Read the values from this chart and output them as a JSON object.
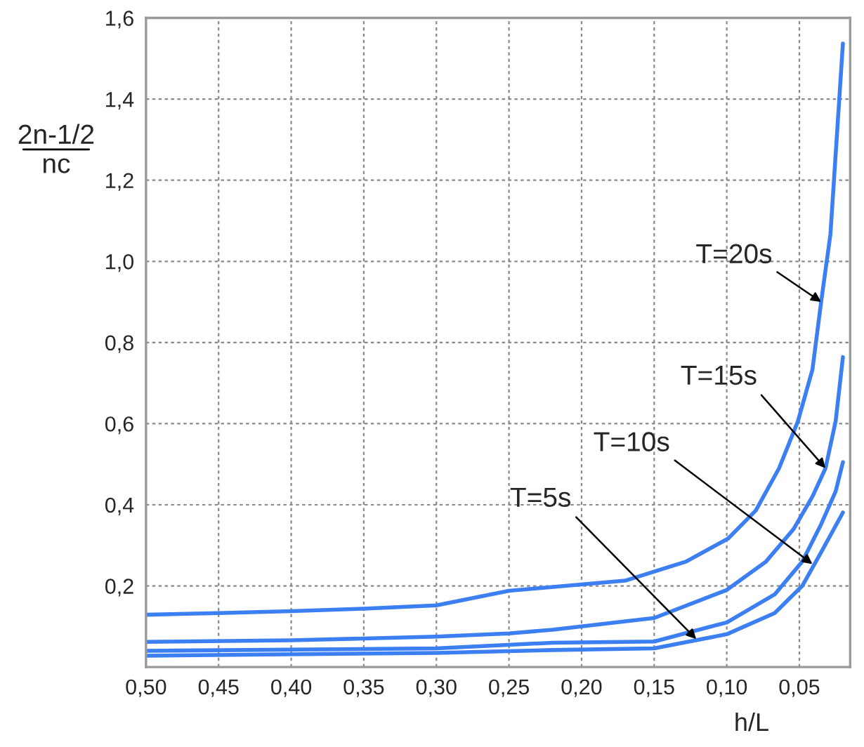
{
  "chart_data": {
    "type": "line",
    "xlabel": "h/L",
    "ylabel": "2n-1/2\nnc",
    "series": [
      {
        "color": "#3b7ff2",
        "x": [
          0.5,
          0.45,
          0.4,
          0.35,
          0.3,
          0.25,
          0.17,
          0.128,
          0.099,
          0.08,
          0.064,
          0.051,
          0.041,
          0.035,
          0.0286,
          0.02
        ],
        "values": [
          0.129,
          0.133,
          0.138,
          0.144,
          0.152,
          0.188,
          0.213,
          0.26,
          0.317,
          0.386,
          0.49,
          0.606,
          0.733,
          0.9,
          1.067,
          1.537
        ]
      },
      {
        "color": "#3b7ff2",
        "x": [
          0.5,
          0.4,
          0.3,
          0.25,
          0.22,
          0.15,
          0.1,
          0.073,
          0.054,
          0.041,
          0.032,
          0.025,
          0.02
        ],
        "values": [
          0.062,
          0.066,
          0.075,
          0.083,
          0.092,
          0.121,
          0.19,
          0.26,
          0.34,
          0.42,
          0.49,
          0.606,
          0.764
        ]
      },
      {
        "color": "#3b7ff2",
        "x": [
          0.5,
          0.3,
          0.22,
          0.15,
          0.1,
          0.067,
          0.048,
          0.035,
          0.025,
          0.02
        ],
        "values": [
          0.04,
          0.046,
          0.06,
          0.063,
          0.11,
          0.179,
          0.26,
          0.352,
          0.433,
          0.505
        ]
      },
      {
        "color": "#3b7ff2",
        "x": [
          0.5,
          0.3,
          0.22,
          0.15,
          0.1,
          0.067,
          0.048,
          0.035,
          0.02
        ],
        "values": [
          0.028,
          0.035,
          0.042,
          0.046,
          0.081,
          0.133,
          0.2,
          0.283,
          0.381
        ]
      }
    ],
    "annotations": [
      {
        "text": "T=20s",
        "x": 0.035,
        "y": 0.9
      },
      {
        "text": "T=15s",
        "x": 0.032,
        "y": 0.49
      },
      {
        "text": "T=10s",
        "x": 0.041,
        "y": 0.254
      },
      {
        "text": "T=5s",
        "x": 0.121,
        "y": 0.069
      }
    ],
    "xlim": [
      0.5,
      0.015
    ],
    "xticks": [
      {
        "value": 0.5,
        "label": "0,50"
      },
      {
        "value": 0.45,
        "label": "0,45"
      },
      {
        "value": 0.4,
        "label": "0,40"
      },
      {
        "value": 0.35,
        "label": "0,35"
      },
      {
        "value": 0.3,
        "label": "0,30"
      },
      {
        "value": 0.25,
        "label": "0,25"
      },
      {
        "value": 0.2,
        "label": "0,20"
      },
      {
        "value": 0.15,
        "label": "0,15"
      },
      {
        "value": 0.1,
        "label": "0,10"
      },
      {
        "value": 0.05,
        "label": "0,05"
      }
    ],
    "ylim": [
      0,
      1.6
    ],
    "yticks": [
      {
        "value": 0,
        "label": null
      },
      {
        "value": 0.2,
        "label": "0,2"
      },
      {
        "value": 0.4,
        "label": "0,4"
      },
      {
        "value": 0.6,
        "label": "0,6"
      },
      {
        "value": 0.8,
        "label": "0,8"
      },
      {
        "value": 1.0,
        "label": "1,0"
      },
      {
        "value": 1.2,
        "label": "1,2"
      },
      {
        "value": 1.4,
        "label": "1,4"
      },
      {
        "value": 1.6,
        "label": "1,6"
      }
    ],
    "grid": true,
    "legend": false,
    "marker": "none",
    "line_style": "solid"
  }
}
